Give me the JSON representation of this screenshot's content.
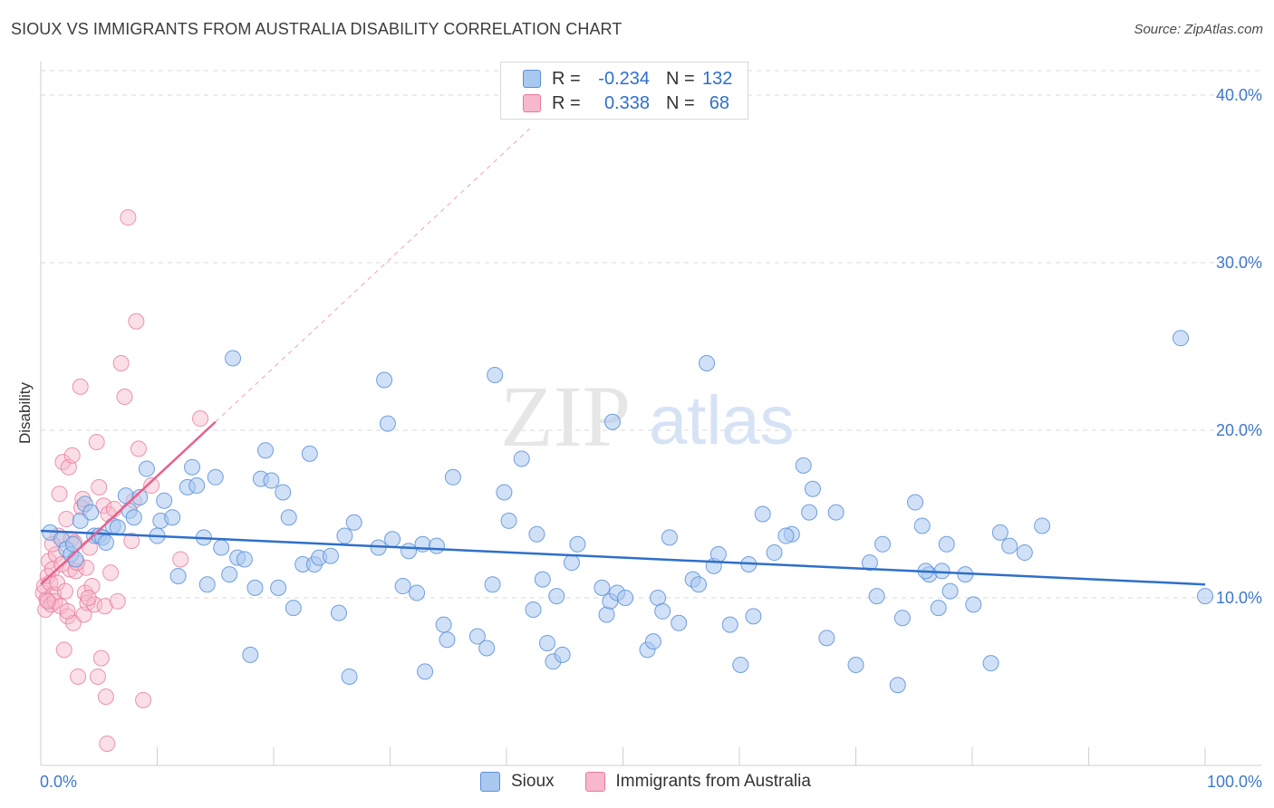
{
  "header": {
    "title": "SIOUX VS IMMIGRANTS FROM AUSTRALIA DISABILITY CORRELATION CHART",
    "source": "Source: ZipAtlas.com"
  },
  "watermark": {
    "zip": "ZIP",
    "atlas": "atlas"
  },
  "colors": {
    "sioux_fill": "#a9c8f0",
    "sioux_stroke": "#5b8fd8",
    "sioux_line": "#2f6fca",
    "aus_fill": "#f6b8ca",
    "aus_stroke": "#e77a9c",
    "aus_line": "#e8608f",
    "grid": "#d9d9d9",
    "tick_label": "#3d78cc"
  },
  "legend": {
    "rows": [
      {
        "r_label": "R =",
        "r_value": "-0.234",
        "n_label": "N =",
        "n_value": "132"
      },
      {
        "r_label": "R =",
        "r_value": "0.338",
        "n_label": "N =",
        "n_value": "68"
      }
    ]
  },
  "chart_data": {
    "type": "scatter",
    "title": "SIOUX VS IMMIGRANTS FROM AUSTRALIA DISABILITY CORRELATION CHART",
    "xlabel": "",
    "ylabel": "Disability",
    "xlim": [
      0,
      100
    ],
    "ylim": [
      0,
      42
    ],
    "x_tick_labels": [
      "0.0%",
      "100.0%"
    ],
    "y_ticks": [
      10,
      20,
      30,
      40
    ],
    "y_tick_labels": [
      "10.0%",
      "20.0%",
      "30.0%",
      "40.0%"
    ],
    "grid": true,
    "series": [
      {
        "name": "Sioux",
        "R": -0.234,
        "N": 132,
        "trend": {
          "x": [
            0,
            100
          ],
          "y": [
            14.0,
            10.8
          ]
        },
        "points": [
          [
            0.8,
            13.9
          ],
          [
            1.8,
            13.5
          ],
          [
            2.2,
            12.9
          ],
          [
            2.6,
            12.6
          ],
          [
            2.8,
            13.2
          ],
          [
            3.0,
            12.3
          ],
          [
            3.4,
            14.6
          ],
          [
            3.8,
            15.6
          ],
          [
            4.3,
            15.1
          ],
          [
            4.6,
            13.7
          ],
          [
            5.0,
            13.7
          ],
          [
            5.3,
            13.6
          ],
          [
            5.6,
            13.3
          ],
          [
            6.2,
            14.3
          ],
          [
            6.6,
            14.2
          ],
          [
            7.3,
            16.1
          ],
          [
            7.6,
            15.2
          ],
          [
            8.0,
            14.8
          ],
          [
            8.5,
            16.0
          ],
          [
            9.1,
            17.7
          ],
          [
            10.0,
            13.7
          ],
          [
            10.3,
            14.6
          ],
          [
            10.6,
            15.8
          ],
          [
            11.3,
            14.8
          ],
          [
            11.8,
            11.3
          ],
          [
            12.6,
            16.6
          ],
          [
            13.0,
            17.8
          ],
          [
            13.4,
            16.7
          ],
          [
            14.0,
            13.6
          ],
          [
            14.3,
            10.8
          ],
          [
            15.0,
            17.2
          ],
          [
            15.5,
            13.0
          ],
          [
            16.2,
            11.4
          ],
          [
            16.5,
            24.3
          ],
          [
            16.9,
            12.4
          ],
          [
            17.5,
            12.3
          ],
          [
            18.0,
            6.6
          ],
          [
            18.4,
            10.6
          ],
          [
            18.9,
            17.1
          ],
          [
            19.3,
            18.8
          ],
          [
            19.8,
            17.0
          ],
          [
            20.4,
            10.6
          ],
          [
            20.8,
            16.3
          ],
          [
            21.3,
            14.8
          ],
          [
            21.7,
            9.4
          ],
          [
            22.5,
            12.0
          ],
          [
            23.1,
            18.6
          ],
          [
            23.5,
            12.0
          ],
          [
            23.9,
            12.4
          ],
          [
            24.9,
            12.5
          ],
          [
            25.6,
            9.1
          ],
          [
            26.1,
            13.7
          ],
          [
            26.5,
            5.3
          ],
          [
            26.9,
            14.5
          ],
          [
            29.0,
            13.0
          ],
          [
            29.5,
            23.0
          ],
          [
            29.8,
            20.4
          ],
          [
            30.2,
            13.5
          ],
          [
            31.1,
            10.7
          ],
          [
            31.6,
            12.8
          ],
          [
            32.3,
            10.3
          ],
          [
            32.8,
            13.2
          ],
          [
            33.0,
            5.6
          ],
          [
            34.0,
            13.1
          ],
          [
            34.6,
            8.4
          ],
          [
            34.9,
            7.5
          ],
          [
            35.4,
            17.2
          ],
          [
            37.5,
            7.7
          ],
          [
            38.3,
            7.0
          ],
          [
            38.8,
            10.8
          ],
          [
            39.0,
            23.3
          ],
          [
            39.8,
            16.3
          ],
          [
            40.2,
            14.6
          ],
          [
            41.3,
            18.3
          ],
          [
            42.3,
            9.3
          ],
          [
            42.6,
            13.8
          ],
          [
            43.1,
            11.1
          ],
          [
            43.5,
            7.3
          ],
          [
            44.0,
            6.2
          ],
          [
            44.3,
            10.1
          ],
          [
            44.8,
            6.6
          ],
          [
            45.6,
            12.1
          ],
          [
            46.1,
            13.2
          ],
          [
            48.2,
            10.6
          ],
          [
            48.6,
            9.0
          ],
          [
            48.9,
            9.8
          ],
          [
            49.1,
            20.5
          ],
          [
            49.5,
            10.3
          ],
          [
            50.2,
            10.0
          ],
          [
            52.1,
            6.9
          ],
          [
            52.6,
            7.4
          ],
          [
            53.0,
            10.0
          ],
          [
            53.4,
            9.2
          ],
          [
            54.0,
            13.6
          ],
          [
            54.8,
            8.5
          ],
          [
            56.0,
            11.1
          ],
          [
            57.2,
            24.0
          ],
          [
            57.8,
            11.9
          ],
          [
            58.2,
            12.6
          ],
          [
            59.2,
            8.4
          ],
          [
            60.1,
            6.0
          ],
          [
            60.8,
            12.0
          ],
          [
            61.2,
            8.9
          ],
          [
            62.0,
            15.0
          ],
          [
            63.0,
            12.7
          ],
          [
            64.5,
            13.8
          ],
          [
            65.5,
            17.9
          ],
          [
            66.0,
            15.1
          ],
          [
            66.3,
            16.5
          ],
          [
            67.5,
            7.6
          ],
          [
            68.3,
            15.1
          ],
          [
            70.0,
            6.0
          ],
          [
            71.2,
            12.1
          ],
          [
            71.8,
            10.1
          ],
          [
            72.3,
            13.2
          ],
          [
            73.6,
            4.8
          ],
          [
            74.0,
            8.8
          ],
          [
            75.1,
            15.7
          ],
          [
            75.7,
            14.3
          ],
          [
            76.3,
            11.4
          ],
          [
            77.1,
            9.4
          ],
          [
            77.4,
            11.6
          ],
          [
            77.8,
            13.2
          ],
          [
            78.1,
            10.4
          ],
          [
            79.4,
            11.4
          ],
          [
            80.1,
            9.6
          ],
          [
            81.6,
            6.1
          ],
          [
            82.4,
            13.9
          ],
          [
            83.2,
            13.1
          ],
          [
            84.5,
            12.7
          ],
          [
            86.0,
            14.3
          ],
          [
            97.9,
            25.5
          ],
          [
            100.0,
            10.1
          ],
          [
            76.0,
            11.6
          ],
          [
            64.0,
            13.7
          ],
          [
            56.5,
            10.8
          ]
        ]
      },
      {
        "name": "Immigrants from Australia",
        "R": 0.338,
        "N": 68,
        "trend": {
          "x": [
            0,
            15
          ],
          "y": [
            10.8,
            20.5
          ]
        },
        "trend_extension": {
          "x": [
            15,
            42
          ],
          "y": [
            20.5,
            38.0
          ]
        },
        "points": [
          [
            0.2,
            10.3
          ],
          [
            0.3,
            10.7
          ],
          [
            0.4,
            9.3
          ],
          [
            0.5,
            9.9
          ],
          [
            0.6,
            11.3
          ],
          [
            0.7,
            12.2
          ],
          [
            0.8,
            10.9
          ],
          [
            0.9,
            9.6
          ],
          [
            1.0,
            11.7
          ],
          [
            1.1,
            10.2
          ],
          [
            1.2,
            9.8
          ],
          [
            1.3,
            12.6
          ],
          [
            1.4,
            10.9
          ],
          [
            1.5,
            13.7
          ],
          [
            1.6,
            16.2
          ],
          [
            1.7,
            9.5
          ],
          [
            1.8,
            12.0
          ],
          [
            1.9,
            18.1
          ],
          [
            2.0,
            6.9
          ],
          [
            2.1,
            10.4
          ],
          [
            2.2,
            14.7
          ],
          [
            2.3,
            8.9
          ],
          [
            2.4,
            17.8
          ],
          [
            2.5,
            11.7
          ],
          [
            2.6,
            13.5
          ],
          [
            2.7,
            18.5
          ],
          [
            2.8,
            8.5
          ],
          [
            2.9,
            13.3
          ],
          [
            3.0,
            11.6
          ],
          [
            3.2,
            5.3
          ],
          [
            3.4,
            22.6
          ],
          [
            3.5,
            15.4
          ],
          [
            3.6,
            15.9
          ],
          [
            3.7,
            9.0
          ],
          [
            3.8,
            10.3
          ],
          [
            3.9,
            11.8
          ],
          [
            4.0,
            9.7
          ],
          [
            4.2,
            13.0
          ],
          [
            4.4,
            10.7
          ],
          [
            4.6,
            9.6
          ],
          [
            4.8,
            19.3
          ],
          [
            4.9,
            5.3
          ],
          [
            5.0,
            16.6
          ],
          [
            5.2,
            6.4
          ],
          [
            5.4,
            15.5
          ],
          [
            5.5,
            9.5
          ],
          [
            5.6,
            4.1
          ],
          [
            5.8,
            15.0
          ],
          [
            6.0,
            11.5
          ],
          [
            6.3,
            15.3
          ],
          [
            6.6,
            9.8
          ],
          [
            6.9,
            24.0
          ],
          [
            7.2,
            22.0
          ],
          [
            7.5,
            32.7
          ],
          [
            7.8,
            13.4
          ],
          [
            8.0,
            15.8
          ],
          [
            8.2,
            26.5
          ],
          [
            8.4,
            18.9
          ],
          [
            8.8,
            3.9
          ],
          [
            9.5,
            16.7
          ],
          [
            12.0,
            12.3
          ],
          [
            13.7,
            20.7
          ],
          [
            5.7,
            1.3
          ],
          [
            0.6,
            9.8
          ],
          [
            1.0,
            13.2
          ],
          [
            2.3,
            9.2
          ],
          [
            3.1,
            12.1
          ],
          [
            4.1,
            10.0
          ]
        ]
      }
    ],
    "legend": [
      "Sioux",
      "Immigrants from Australia"
    ]
  }
}
